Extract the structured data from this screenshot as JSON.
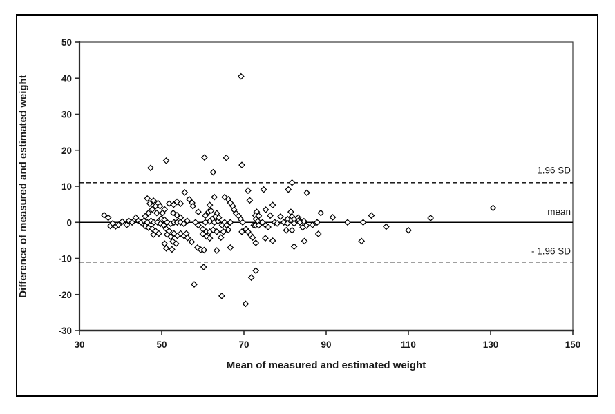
{
  "chart_data": {
    "type": "scatter",
    "title": "",
    "xlabel": "Mean of measured and estimated weight",
    "ylabel": "Difference of measured and estimated weight",
    "xlim": [
      30,
      150
    ],
    "ylim": [
      -30,
      50
    ],
    "xticks": [
      30,
      50,
      70,
      90,
      110,
      130,
      150
    ],
    "yticks": [
      -30,
      -20,
      -10,
      0,
      10,
      20,
      30,
      40,
      50
    ],
    "grid": false,
    "legend": "none",
    "marker": "open-diamond",
    "reference_lines": [
      {
        "label": "1.96 SD",
        "value": 11,
        "style": "dashed",
        "label_y": 14.5
      },
      {
        "label": "mean",
        "value": 0,
        "style": "solid",
        "label_y": 3.0
      },
      {
        "label": "- 1.96 SD",
        "value": -11,
        "style": "dashed",
        "label_y": -7.9
      }
    ],
    "points": [
      [
        36,
        2
      ],
      [
        37,
        1.3
      ],
      [
        37.5,
        -1
      ],
      [
        38.1,
        -0.3
      ],
      [
        38.8,
        -1.1
      ],
      [
        39.5,
        -0.7
      ],
      [
        40.4,
        0.2
      ],
      [
        41.5,
        -0.7
      ],
      [
        43.7,
        1.3
      ],
      [
        46,
        1.7
      ],
      [
        46.8,
        2.6
      ],
      [
        47.7,
        3.6
      ],
      [
        47.1,
        5.2
      ],
      [
        48,
        6
      ],
      [
        49.1,
        5.3
      ],
      [
        48.5,
        4.5
      ],
      [
        49.6,
        4.5
      ],
      [
        48.8,
        2.6
      ],
      [
        50.2,
        2.6
      ],
      [
        50.7,
        3.6
      ],
      [
        49.9,
        1
      ],
      [
        50.7,
        0.7
      ],
      [
        51.8,
        5.2
      ],
      [
        52.9,
        4.9
      ],
      [
        53.7,
        5.7
      ],
      [
        54.6,
        5.2
      ],
      [
        52.8,
        2.6
      ],
      [
        53.7,
        2
      ],
      [
        54.6,
        1.3
      ],
      [
        42,
        0.4
      ],
      [
        42.8,
        0
      ],
      [
        44.3,
        0.4
      ],
      [
        45,
        0
      ],
      [
        45.7,
        0.4
      ],
      [
        46.5,
        0
      ],
      [
        47.4,
        0.4
      ],
      [
        48.1,
        0
      ],
      [
        49,
        0
      ],
      [
        49.7,
        -0.4
      ],
      [
        50.5,
        -0.8
      ],
      [
        51.3,
        0
      ],
      [
        52.2,
        -0.4
      ],
      [
        53,
        0
      ],
      [
        53.8,
        0
      ],
      [
        54.6,
        0
      ],
      [
        55.4,
        -0.4
      ],
      [
        56.2,
        0.4
      ],
      [
        46,
        -1
      ],
      [
        46.8,
        -1.5
      ],
      [
        47.7,
        -1.8
      ],
      [
        48.5,
        -2.4
      ],
      [
        49.3,
        -3.1
      ],
      [
        48,
        -3.4
      ],
      [
        51.1,
        -1.8
      ],
      [
        51.8,
        -2.4
      ],
      [
        51.3,
        -3.4
      ],
      [
        52.2,
        -4
      ],
      [
        53,
        -3.1
      ],
      [
        53.8,
        -3.7
      ],
      [
        54.6,
        -3.1
      ],
      [
        55.4,
        -3.7
      ],
      [
        52.7,
        -5.3
      ],
      [
        53.5,
        -5.9
      ],
      [
        50.7,
        -5.9
      ],
      [
        51.1,
        -7.2
      ],
      [
        52.5,
        -7.5
      ],
      [
        56,
        -3.1
      ],
      [
        56.3,
        -4.3
      ],
      [
        46.5,
        6.6
      ],
      [
        47.3,
        15.1
      ],
      [
        51.1,
        17.1
      ],
      [
        55.6,
        8.3
      ],
      [
        56.7,
        6.4
      ],
      [
        57.4,
        5.4
      ],
      [
        57.6,
        4.5
      ],
      [
        58.9,
        2.9
      ],
      [
        60.6,
        1.9
      ],
      [
        61.4,
        2.9
      ],
      [
        62,
        3.2
      ],
      [
        61.7,
        4.8
      ],
      [
        62.8,
        7
      ],
      [
        65.3,
        7
      ],
      [
        66.2,
        6.4
      ],
      [
        66.7,
        5.4
      ],
      [
        67.3,
        4.5
      ],
      [
        67.6,
        3.5
      ],
      [
        63.4,
        2.5
      ],
      [
        63.1,
        1.6
      ],
      [
        62.3,
        0.9
      ],
      [
        61.7,
        0.3
      ],
      [
        62.8,
        0
      ],
      [
        63.7,
        0.3
      ],
      [
        63.9,
        1.3
      ],
      [
        68.1,
        2.5
      ],
      [
        68.7,
        1.8
      ],
      [
        69.2,
        0.9
      ],
      [
        69.7,
        0
      ],
      [
        71,
        8.8
      ],
      [
        71.4,
        6.1
      ],
      [
        74.8,
        9.1
      ],
      [
        73.1,
        2.9
      ],
      [
        72.8,
        1.9
      ],
      [
        73.6,
        1.8
      ],
      [
        72.9,
        0.9
      ],
      [
        73.4,
        0.3
      ],
      [
        75.3,
        3.5
      ],
      [
        58.2,
        0
      ],
      [
        58.9,
        -0.8
      ],
      [
        60.6,
        0
      ],
      [
        65.3,
        0
      ],
      [
        64.7,
        -0.8
      ],
      [
        65.8,
        -0.8
      ],
      [
        66.7,
        0
      ],
      [
        60,
        -1.9
      ],
      [
        60.9,
        -2.6
      ],
      [
        60,
        -3.2
      ],
      [
        60.9,
        -3.9
      ],
      [
        61.7,
        -2.6
      ],
      [
        62.5,
        -2.1
      ],
      [
        63.4,
        -2.6
      ],
      [
        61.7,
        -4.4
      ],
      [
        65,
        -2.6
      ],
      [
        64.4,
        -4.2
      ],
      [
        66.2,
        -2.1
      ],
      [
        69.5,
        -2.6
      ],
      [
        70.5,
        -1.9
      ],
      [
        71,
        -2.6
      ],
      [
        71.6,
        -3.5
      ],
      [
        72.1,
        -4.2
      ],
      [
        72.9,
        -5.7
      ],
      [
        72.4,
        -0.8
      ],
      [
        72.8,
        -0.8
      ],
      [
        73.6,
        -0.8
      ],
      [
        74.5,
        0
      ],
      [
        75.3,
        -0.8
      ],
      [
        57.3,
        -5.4
      ],
      [
        58.7,
        -7
      ],
      [
        59.5,
        -7.6
      ],
      [
        60.3,
        -7.7
      ],
      [
        63.4,
        -7.8
      ],
      [
        66.7,
        -7
      ],
      [
        60.4,
        18
      ],
      [
        65.7,
        17.9
      ],
      [
        69.5,
        15.9
      ],
      [
        62.5,
        13.9
      ],
      [
        69.3,
        40.5
      ],
      [
        81.7,
        11
      ],
      [
        80.8,
        9.1
      ],
      [
        85.3,
        8.2
      ],
      [
        77,
        4.8
      ],
      [
        76.4,
        1.9
      ],
      [
        78.9,
        1.6
      ],
      [
        81.4,
        2.9
      ],
      [
        81.7,
        1.6
      ],
      [
        80.6,
        0.9
      ],
      [
        82.2,
        0.9
      ],
      [
        83.2,
        1.3
      ],
      [
        83.4,
        0.6
      ],
      [
        77.5,
        0
      ],
      [
        78.1,
        -0.3
      ],
      [
        79.7,
        0
      ],
      [
        80.6,
        -0.3
      ],
      [
        82.2,
        -0.3
      ],
      [
        83.6,
        0
      ],
      [
        84.6,
        0.3
      ],
      [
        85.2,
        -0.9
      ],
      [
        86.7,
        -0.7
      ],
      [
        87.8,
        0
      ],
      [
        75.9,
        -1.3
      ],
      [
        84.3,
        -1.4
      ],
      [
        80.3,
        -2.2
      ],
      [
        81.7,
        -2.2
      ],
      [
        88.1,
        -3.2
      ],
      [
        88.7,
        2.6
      ],
      [
        91.6,
        1.4
      ],
      [
        95.2,
        0
      ],
      [
        75.2,
        -4.4
      ],
      [
        77,
        -5.1
      ],
      [
        84.7,
        -5.2
      ],
      [
        82.2,
        -6.7
      ],
      [
        99,
        0
      ],
      [
        101,
        1.9
      ],
      [
        104.6,
        -1.2
      ],
      [
        110,
        -2.2
      ],
      [
        115.4,
        1.2
      ],
      [
        98.6,
        -5.2
      ],
      [
        130.6,
        4
      ],
      [
        60.2,
        -12.4
      ],
      [
        72.9,
        -13.4
      ],
      [
        71.8,
        -15.3
      ],
      [
        57.9,
        -17.2
      ],
      [
        64.6,
        -20.4
      ],
      [
        70.4,
        -22.6
      ]
    ]
  },
  "colors": {
    "marker_stroke": "#000000",
    "marker_fill": "#ffffff",
    "line": "#000000",
    "text": "#1a1a1a",
    "background": "#ffffff"
  }
}
